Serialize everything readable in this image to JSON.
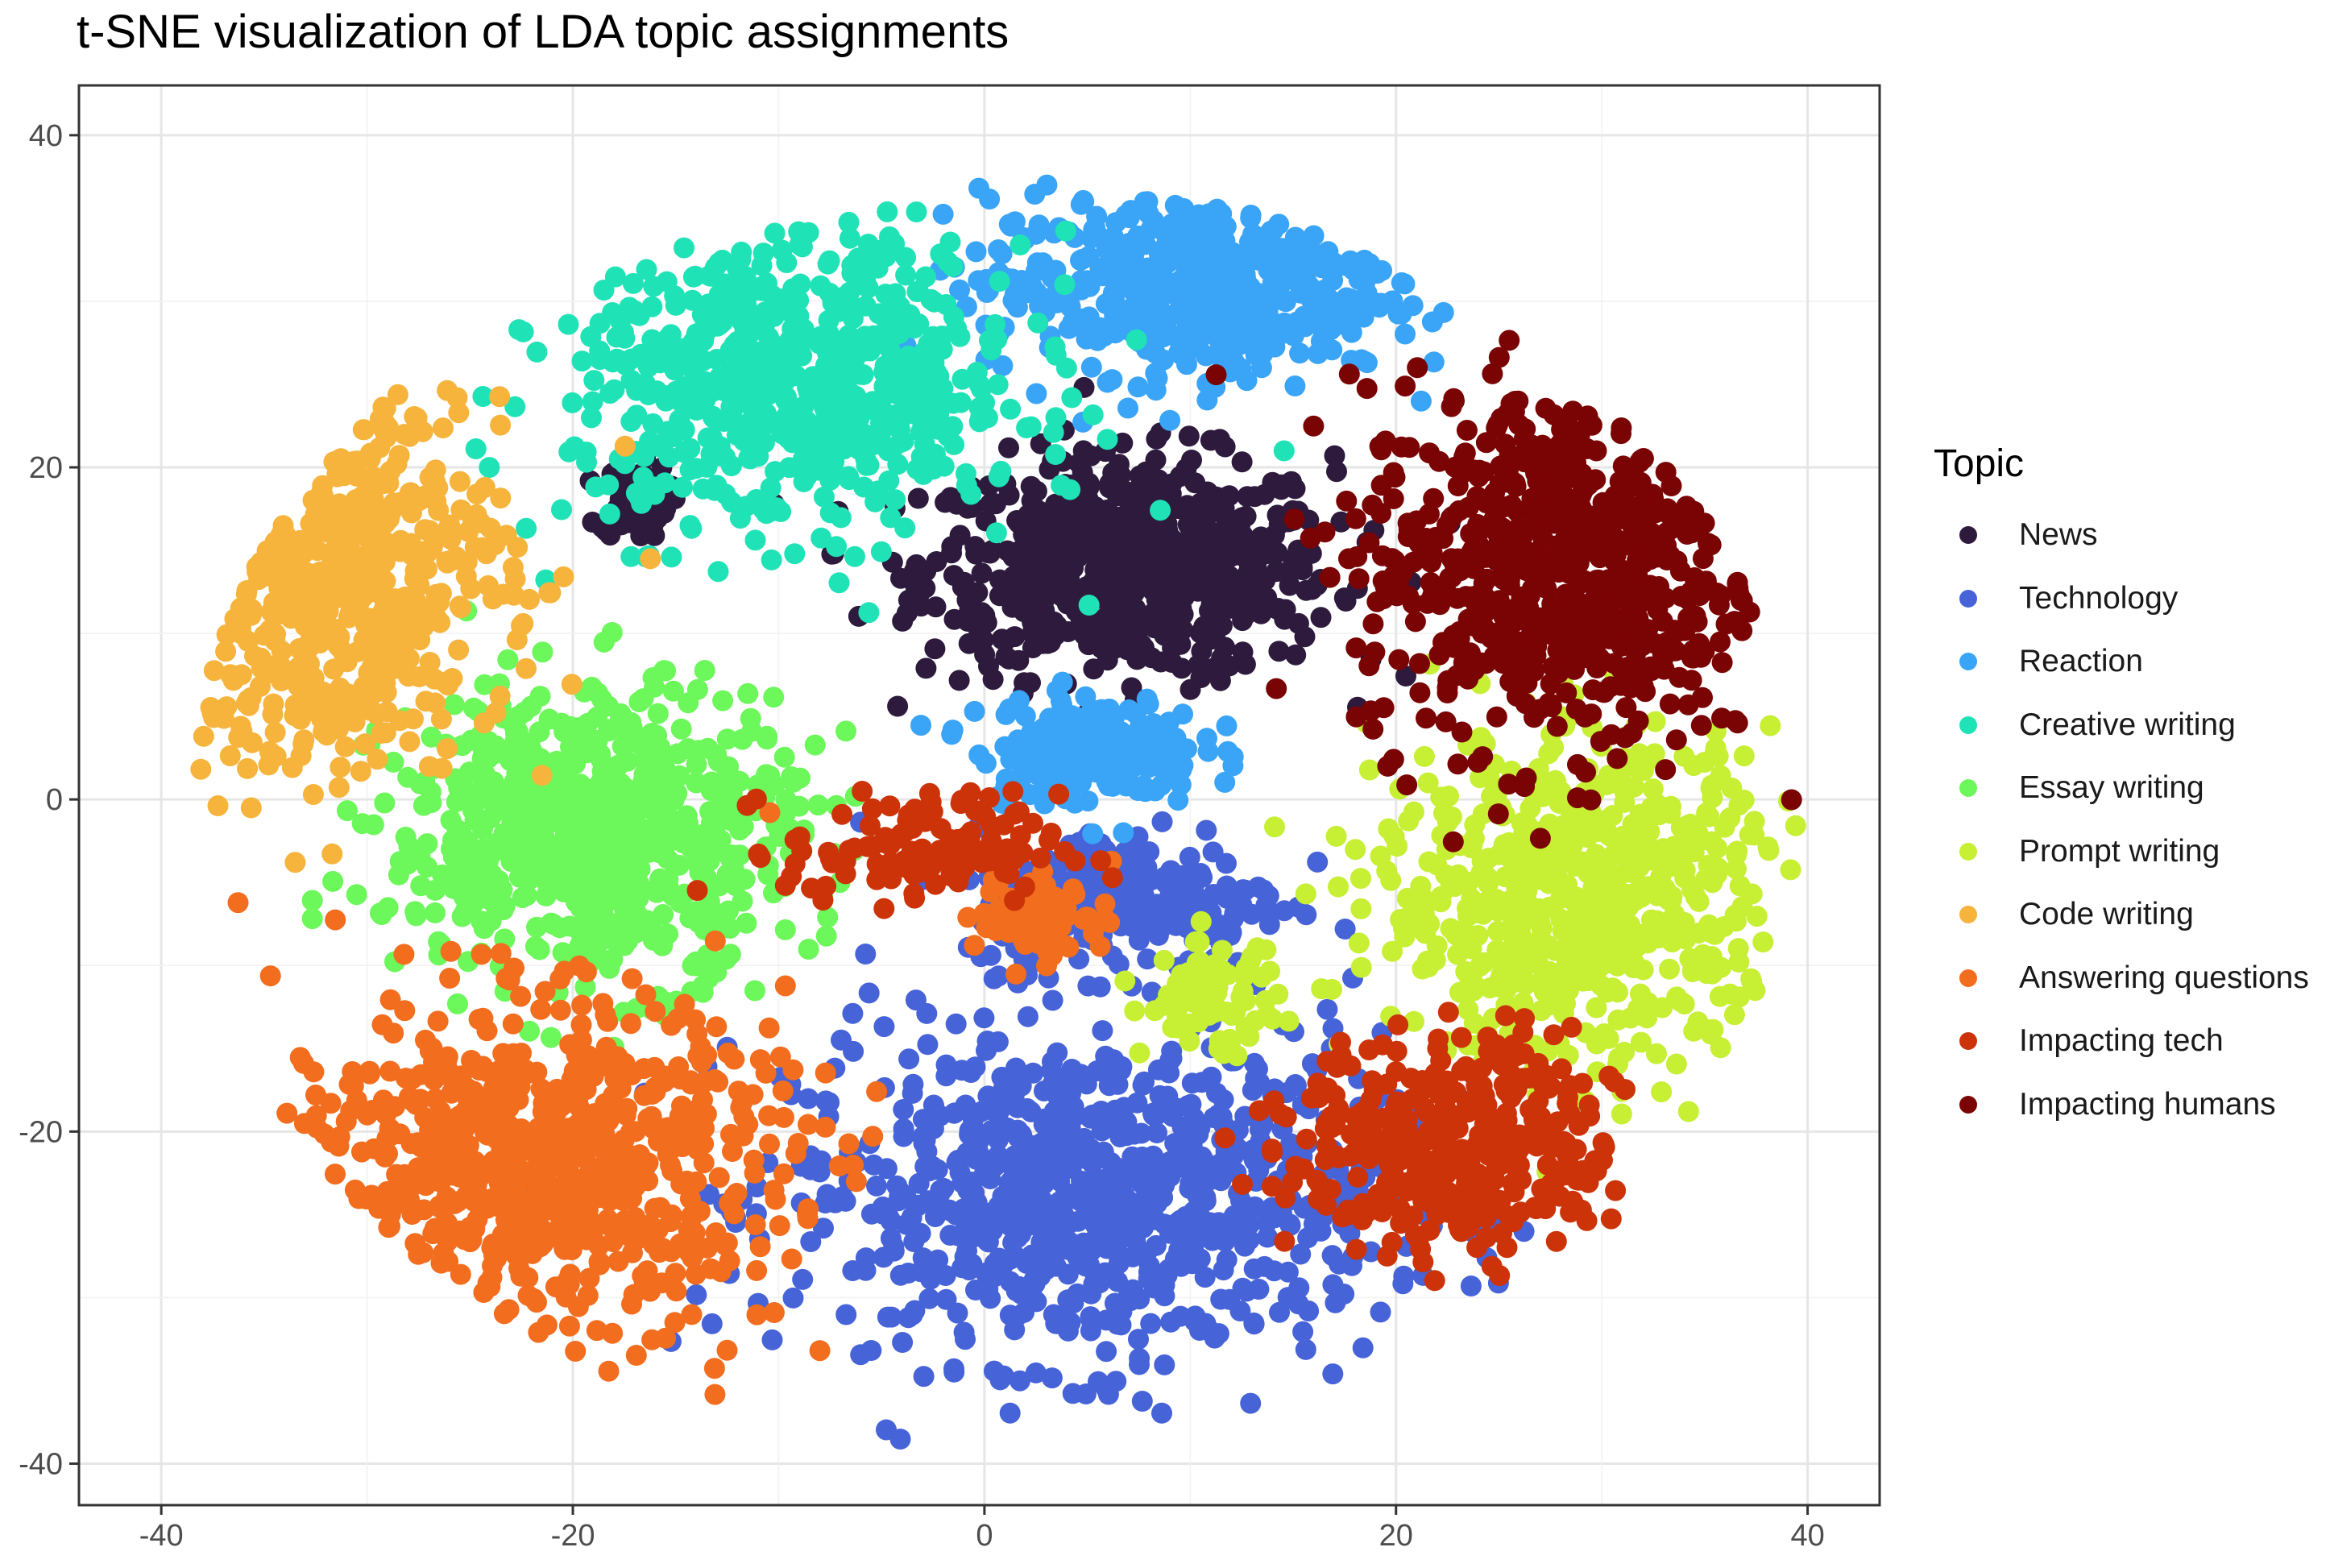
{
  "chart_data": {
    "type": "scatter",
    "title": "t-SNE visualization of LDA topic assignments",
    "xlabel": "",
    "ylabel": "",
    "xlim": [
      -44,
      43.5
    ],
    "ylim": [
      -42.5,
      43
    ],
    "x_ticks": [
      -40,
      -20,
      0,
      20,
      40
    ],
    "y_ticks": [
      40,
      20,
      0,
      -20,
      -40
    ],
    "x_tick_labels": [
      "-40",
      "-20",
      "0",
      "20",
      "40"
    ],
    "y_tick_labels": [
      "40",
      "20",
      "0",
      "-20",
      "-40"
    ],
    "grid": true,
    "legend": {
      "title": "Topic",
      "placement": "right"
    },
    "series": [
      {
        "name": "News",
        "color": "#2d1a3d",
        "clusters": [
          {
            "center": [
              7,
              14
            ],
            "spread": [
              9,
              6
            ],
            "weight": 1.0
          },
          {
            "center": [
              -17,
              18
            ],
            "spread": [
              1.5,
              2
            ],
            "weight": 0.12
          }
        ]
      },
      {
        "name": "Technology",
        "color": "#4663d8",
        "clusters": [
          {
            "center": [
              5,
              -24
            ],
            "spread": [
              13,
              9
            ],
            "weight": 1.2
          },
          {
            "center": [
              7,
              -6
            ],
            "spread": [
              7,
              4
            ],
            "weight": 0.35
          }
        ]
      },
      {
        "name": "Reaction",
        "color": "#3aa4f6",
        "clusters": [
          {
            "center": [
              10,
              31
            ],
            "spread": [
              9,
              5
            ],
            "weight": 0.8
          },
          {
            "center": [
              5,
              3
            ],
            "spread": [
              5,
              3
            ],
            "weight": 0.3
          }
        ]
      },
      {
        "name": "Creative writing",
        "color": "#1fe3b7",
        "clusters": [
          {
            "center": [
              -9,
              25
            ],
            "spread": [
              10,
              8
            ],
            "weight": 1.0
          }
        ]
      },
      {
        "name": "Essay writing",
        "color": "#6cf75a",
        "clusters": [
          {
            "center": [
              -19,
              -2
            ],
            "spread": [
              9,
              8
            ],
            "weight": 1.0
          }
        ]
      },
      {
        "name": "Prompt writing",
        "color": "#c7ef34",
        "clusters": [
          {
            "center": [
              29,
              -6
            ],
            "spread": [
              9,
              9
            ],
            "weight": 0.95
          },
          {
            "center": [
              11,
              -12
            ],
            "spread": [
              3,
              3
            ],
            "weight": 0.12
          }
        ]
      },
      {
        "name": "Code writing",
        "color": "#f6b43d",
        "clusters": [
          {
            "center": [
              -32,
              14
            ],
            "spread": [
              8,
              11
            ],
            "weight": 1.0
          }
        ]
      },
      {
        "name": "Answering questions",
        "color": "#f26d1e",
        "clusters": [
          {
            "center": [
              -22,
              -22
            ],
            "spread": [
              11,
              9
            ],
            "weight": 1.1
          },
          {
            "center": [
              3,
              -7
            ],
            "spread": [
              3,
              2.5
            ],
            "weight": 0.1
          }
        ]
      },
      {
        "name": "Impacting tech",
        "color": "#cc3309",
        "clusters": [
          {
            "center": [
              23,
              -21
            ],
            "spread": [
              7,
              6
            ],
            "weight": 0.6
          },
          {
            "center": [
              -3,
              -3
            ],
            "spread": [
              6,
              3
            ],
            "weight": 0.18
          }
        ]
      },
      {
        "name": "Impacting humans",
        "color": "#7a0403",
        "clusters": [
          {
            "center": [
              28,
              14
            ],
            "spread": [
              9,
              10
            ],
            "weight": 1.0
          }
        ]
      }
    ]
  }
}
